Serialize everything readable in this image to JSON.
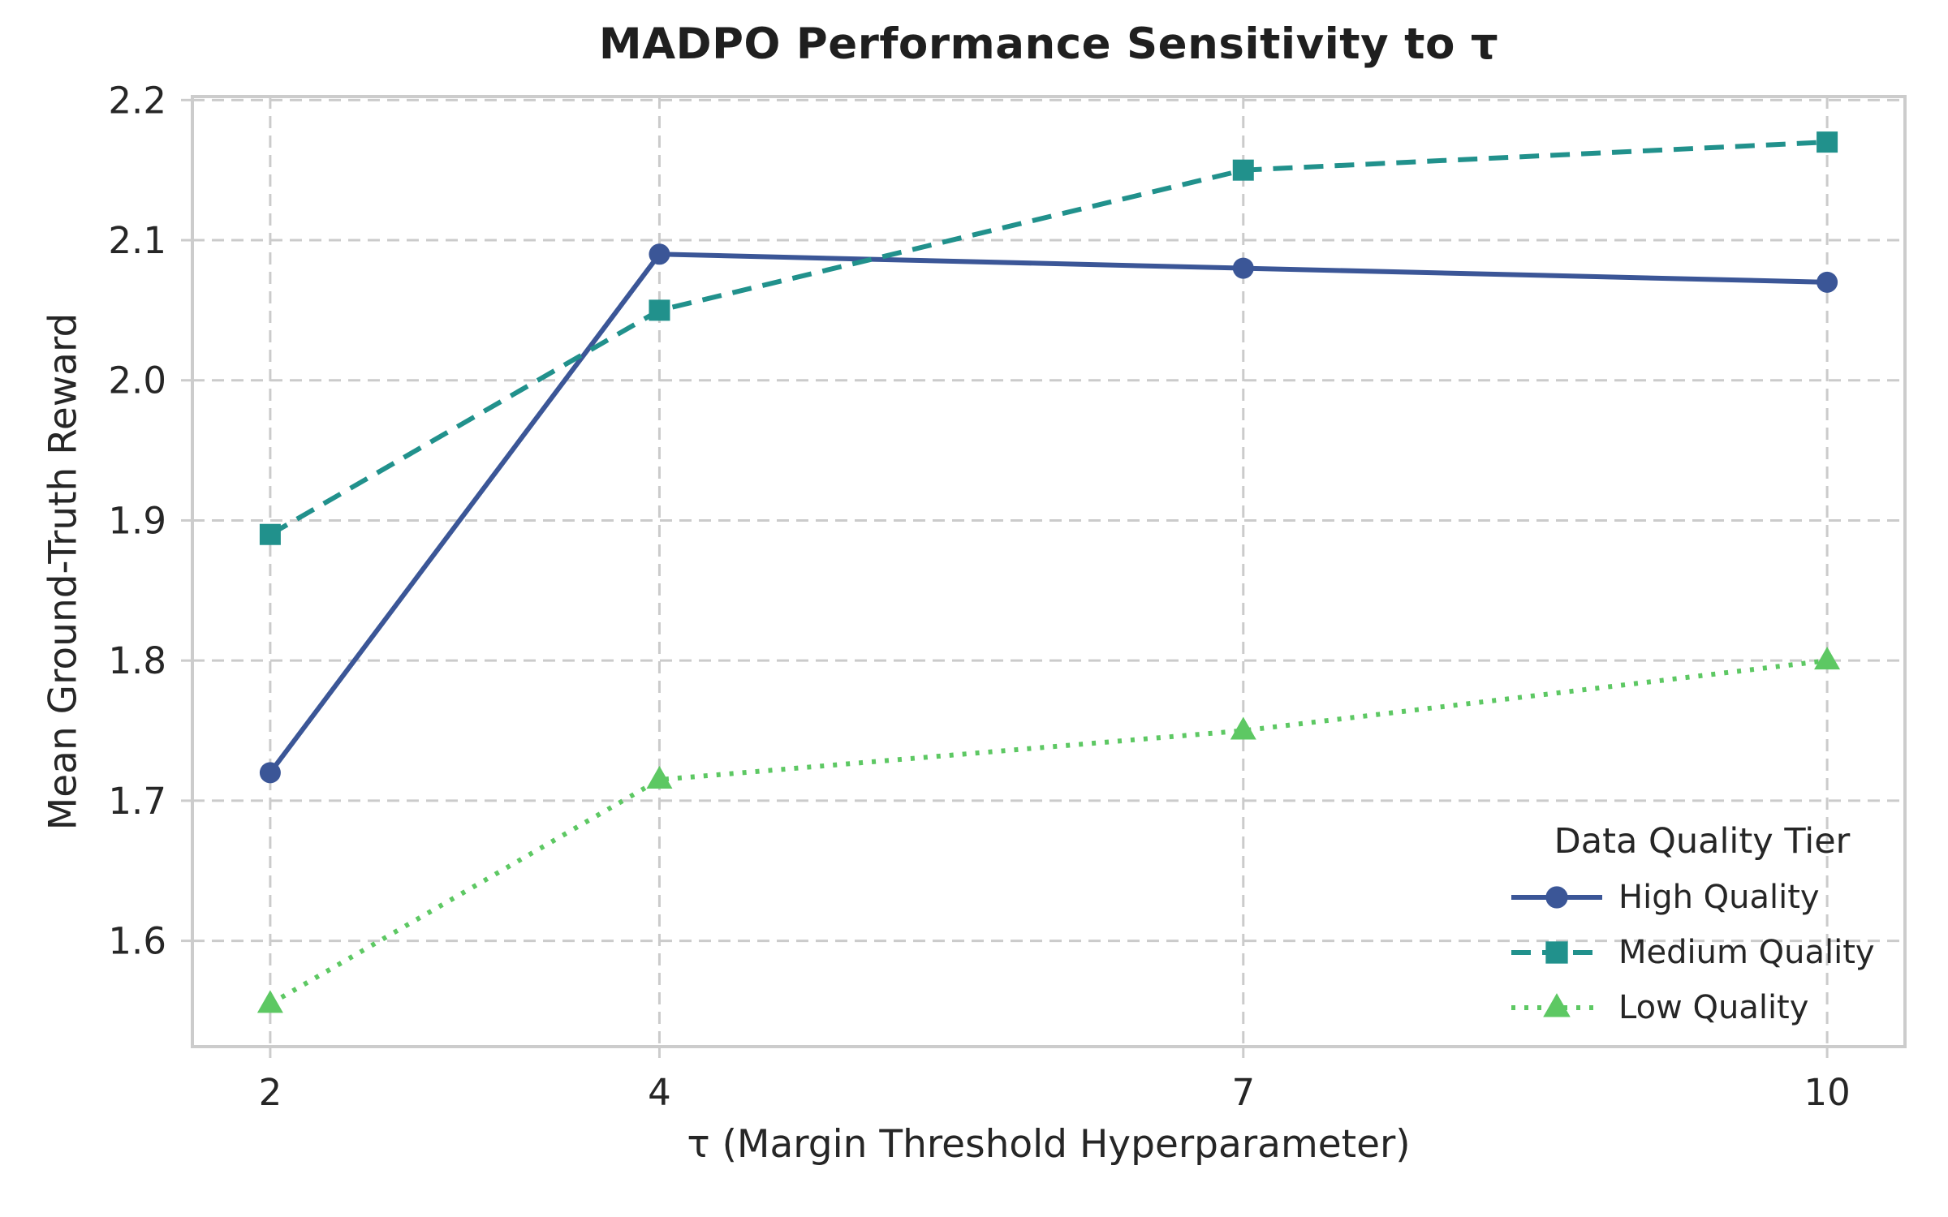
{
  "chart_data": {
    "type": "line",
    "title": "MADPO Performance Sensitivity to τ",
    "xlabel": "τ (Margin Threshold Hyperparameter)",
    "ylabel": "Mean Ground-Truth Reward",
    "x": [
      2,
      4,
      7,
      10
    ],
    "xtick_labels": [
      "2",
      "4",
      "7",
      "10"
    ],
    "ytick_values": [
      1.6,
      1.7,
      1.8,
      1.9,
      2.0,
      2.1,
      2.2
    ],
    "ytick_labels": [
      "1.6",
      "1.7",
      "1.8",
      "1.9",
      "2.0",
      "2.1",
      "2.2"
    ],
    "xlim": [
      1.6,
      10.4
    ],
    "ylim": [
      1.5245,
      2.2025
    ],
    "grid": true,
    "legend": {
      "title": "Data Quality Tier",
      "position": "lower right"
    },
    "series": [
      {
        "name": "High Quality",
        "values": [
          1.72,
          2.09,
          2.08,
          2.07
        ],
        "color": "#3B5697",
        "line_style": "solid",
        "marker": "circle"
      },
      {
        "name": "Medium Quality",
        "values": [
          1.89,
          2.05,
          2.15,
          2.17
        ],
        "color": "#21918C",
        "line_style": "dashed",
        "marker": "square"
      },
      {
        "name": "Low Quality",
        "values": [
          1.555,
          1.715,
          1.75,
          1.8
        ],
        "color": "#5DC863",
        "line_style": "dotted",
        "marker": "triangle"
      }
    ],
    "colors": {
      "grid": "#CBCBCB",
      "spine": "#CCCCCC",
      "text": "#262626",
      "background": "#FFFFFF"
    }
  }
}
